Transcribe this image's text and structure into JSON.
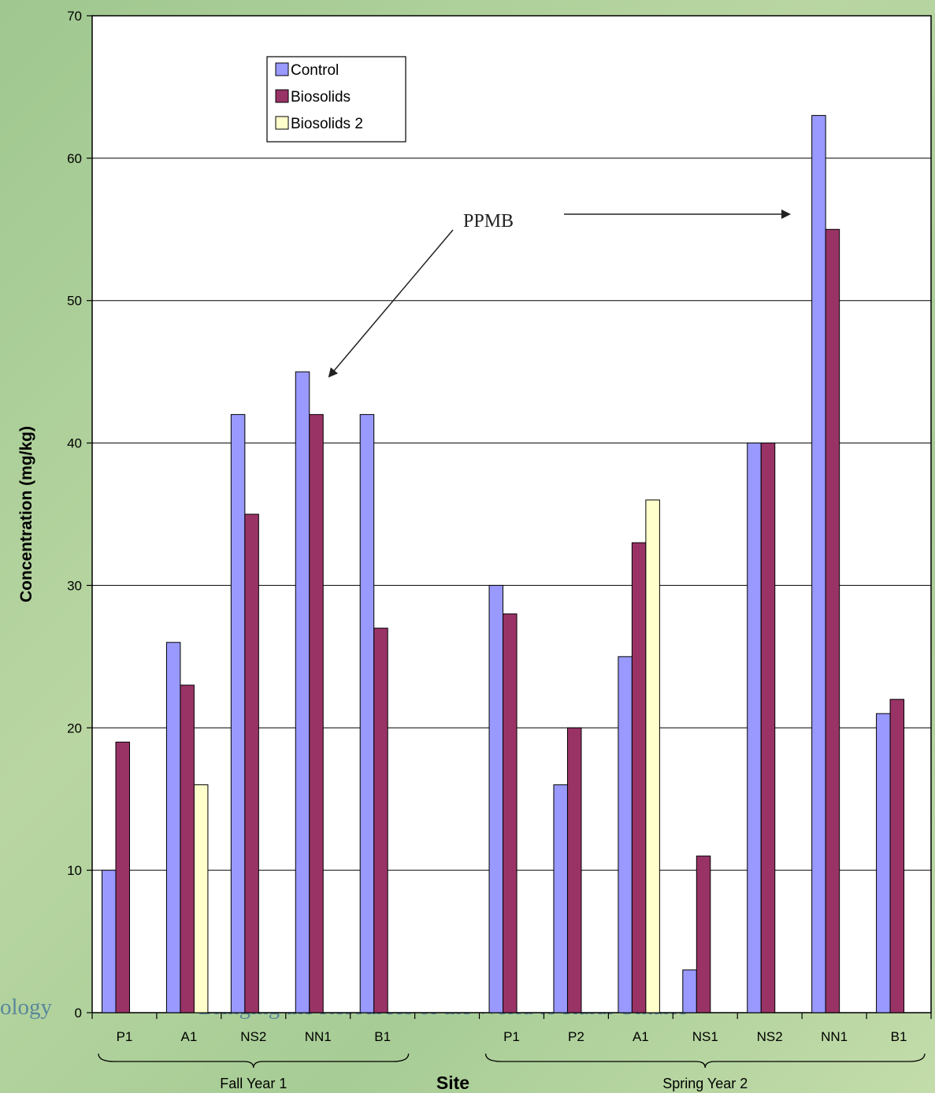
{
  "footer": {
    "left": "ology",
    "center": "Bringing the Resources of the World to Rural Ontario"
  },
  "annotation": {
    "text": "PPMB"
  },
  "chart_data": {
    "type": "bar",
    "ylabel": "Concentration (mg/kg)",
    "xlabel": "Site",
    "ylim": [
      0,
      70
    ],
    "yticks": [
      0,
      10,
      20,
      30,
      40,
      50,
      60,
      70
    ],
    "grid": true,
    "legend_position": "top-left",
    "categories": [
      "P1",
      "A1",
      "NS2",
      "NN1",
      "B1",
      "",
      "P1",
      "P2",
      "A1",
      "NS1",
      "NS2",
      "NN1",
      "B1"
    ],
    "groups": [
      {
        "label": "Fall Year 1",
        "from": 0,
        "to": 4
      },
      {
        "label": "Spring Year 2",
        "from": 6,
        "to": 12
      }
    ],
    "series": [
      {
        "name": "Control",
        "color": "#9999ff",
        "values": [
          10,
          26,
          42,
          45,
          42,
          null,
          30,
          16,
          25,
          3,
          40,
          63,
          21
        ]
      },
      {
        "name": "Biosolids",
        "color": "#993366",
        "values": [
          19,
          23,
          35,
          42,
          27,
          null,
          28,
          20,
          33,
          11,
          40,
          55,
          22
        ]
      },
      {
        "name": "Biosolids 2",
        "color": "#ffffcc",
        "values": [
          null,
          16,
          null,
          null,
          null,
          null,
          null,
          null,
          36,
          null,
          null,
          null,
          null
        ]
      }
    ]
  }
}
